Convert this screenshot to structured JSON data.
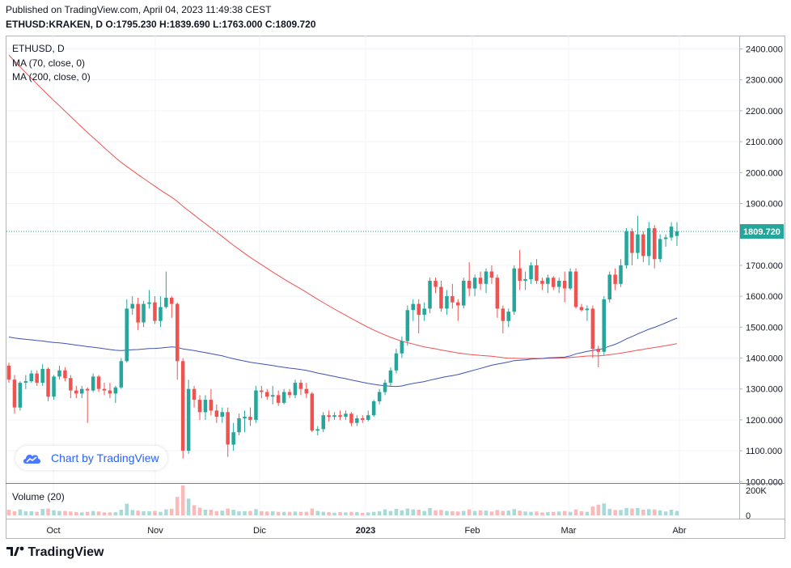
{
  "header": {
    "published": "Published on TradingView.com, April 04, 2023 11:49:38 CEST",
    "symbol": "ETHUSD:KRAKEN, D",
    "ohlc": "O:1795.230 H:1839.690 L:1763.000 C:1809.720"
  },
  "legend": {
    "title": "ETHUSD, D",
    "ma70": "MA (70, close, 0)",
    "ma200": "MA (200, close, 0)",
    "volume": "Volume (20)"
  },
  "watermark": {
    "text": "Chart by TradingView"
  },
  "footer": {
    "brand": "TradingView"
  },
  "chart_data": {
    "type": "candlestick",
    "price_axis": {
      "min": 1000,
      "max": 2400,
      "ticks": [
        "1000.000",
        "1100.000",
        "1200.000",
        "1300.000",
        "1400.000",
        "1500.000",
        "1600.000",
        "1700.000",
        "1800.000",
        "1900.000",
        "2000.000",
        "2100.000",
        "2200.000",
        "2300.000",
        "2400.000"
      ]
    },
    "volume_axis": {
      "ticks": [
        "0",
        "200K"
      ]
    },
    "time_axis": {
      "labels": [
        "Oct",
        "Nov",
        "Dic",
        "2023",
        "Feb",
        "Mar",
        "Abr"
      ]
    },
    "last_price": "1809.720",
    "colors": {
      "up": "#26a69a",
      "down": "#ef5350",
      "ma70": "#3f51b5",
      "ma200": "#ef5350",
      "last": "#26a69a"
    },
    "series": [
      {
        "name": "ETHUSD",
        "values": [
          [
            1375,
            1385,
            1320,
            1330
          ],
          [
            1330,
            1345,
            1220,
            1240
          ],
          [
            1240,
            1325,
            1230,
            1320
          ],
          [
            1320,
            1345,
            1300,
            1325
          ],
          [
            1325,
            1360,
            1320,
            1350
          ],
          [
            1350,
            1360,
            1310,
            1320
          ],
          [
            1320,
            1380,
            1310,
            1365
          ],
          [
            1365,
            1370,
            1260,
            1275
          ],
          [
            1275,
            1345,
            1265,
            1340
          ],
          [
            1340,
            1375,
            1330,
            1360
          ],
          [
            1360,
            1370,
            1325,
            1335
          ],
          [
            1335,
            1345,
            1270,
            1295
          ],
          [
            1295,
            1310,
            1270,
            1285
          ],
          [
            1285,
            1310,
            1270,
            1300
          ],
          [
            1300,
            1305,
            1190,
            1295
          ],
          [
            1295,
            1350,
            1290,
            1340
          ],
          [
            1340,
            1345,
            1290,
            1300
          ],
          [
            1300,
            1320,
            1280,
            1295
          ],
          [
            1295,
            1320,
            1270,
            1285
          ],
          [
            1285,
            1310,
            1255,
            1305
          ],
          [
            1305,
            1400,
            1300,
            1390
          ],
          [
            1390,
            1590,
            1385,
            1560
          ],
          [
            1560,
            1600,
            1540,
            1575
          ],
          [
            1575,
            1595,
            1490,
            1515
          ],
          [
            1515,
            1585,
            1500,
            1575
          ],
          [
            1575,
            1620,
            1560,
            1580
          ],
          [
            1580,
            1600,
            1510,
            1520
          ],
          [
            1520,
            1600,
            1500,
            1565
          ],
          [
            1565,
            1680,
            1560,
            1595
          ],
          [
            1595,
            1600,
            1530,
            1575
          ],
          [
            1575,
            1580,
            1330,
            1390
          ],
          [
            1390,
            1400,
            1075,
            1100
          ],
          [
            1100,
            1330,
            1090,
            1300
          ],
          [
            1300,
            1310,
            1240,
            1265
          ],
          [
            1265,
            1280,
            1200,
            1225
          ],
          [
            1225,
            1280,
            1200,
            1265
          ],
          [
            1265,
            1300,
            1215,
            1230
          ],
          [
            1230,
            1250,
            1190,
            1210
          ],
          [
            1210,
            1240,
            1190,
            1225
          ],
          [
            1225,
            1240,
            1080,
            1120
          ],
          [
            1120,
            1190,
            1100,
            1160
          ],
          [
            1160,
            1220,
            1150,
            1205
          ],
          [
            1205,
            1230,
            1160,
            1210
          ],
          [
            1210,
            1240,
            1180,
            1200
          ],
          [
            1200,
            1310,
            1190,
            1295
          ],
          [
            1295,
            1310,
            1270,
            1290
          ],
          [
            1290,
            1300,
            1265,
            1275
          ],
          [
            1275,
            1310,
            1250,
            1280
          ],
          [
            1280,
            1295,
            1245,
            1255
          ],
          [
            1255,
            1300,
            1250,
            1290
          ],
          [
            1290,
            1300,
            1270,
            1280
          ],
          [
            1280,
            1330,
            1270,
            1320
          ],
          [
            1320,
            1330,
            1280,
            1300
          ],
          [
            1300,
            1320,
            1270,
            1285
          ],
          [
            1285,
            1290,
            1160,
            1165
          ],
          [
            1165,
            1180,
            1150,
            1170
          ],
          [
            1170,
            1225,
            1160,
            1215
          ],
          [
            1215,
            1230,
            1195,
            1210
          ],
          [
            1210,
            1225,
            1200,
            1215
          ],
          [
            1215,
            1230,
            1200,
            1210
          ],
          [
            1210,
            1230,
            1200,
            1220
          ],
          [
            1220,
            1225,
            1180,
            1190
          ],
          [
            1190,
            1215,
            1180,
            1205
          ],
          [
            1205,
            1215,
            1190,
            1200
          ],
          [
            1200,
            1230,
            1195,
            1215
          ],
          [
            1215,
            1265,
            1210,
            1260
          ],
          [
            1260,
            1300,
            1250,
            1290
          ],
          [
            1290,
            1330,
            1280,
            1320
          ],
          [
            1320,
            1370,
            1310,
            1360
          ],
          [
            1360,
            1430,
            1350,
            1415
          ],
          [
            1415,
            1470,
            1400,
            1455
          ],
          [
            1455,
            1570,
            1440,
            1555
          ],
          [
            1555,
            1590,
            1520,
            1575
          ],
          [
            1575,
            1590,
            1480,
            1540
          ],
          [
            1540,
            1580,
            1520,
            1560
          ],
          [
            1560,
            1660,
            1545,
            1650
          ],
          [
            1650,
            1660,
            1610,
            1630
          ],
          [
            1630,
            1650,
            1550,
            1560
          ],
          [
            1560,
            1620,
            1540,
            1600
          ],
          [
            1600,
            1640,
            1560,
            1580
          ],
          [
            1580,
            1590,
            1520,
            1570
          ],
          [
            1570,
            1660,
            1560,
            1650
          ],
          [
            1650,
            1710,
            1600,
            1625
          ],
          [
            1625,
            1670,
            1600,
            1660
          ],
          [
            1660,
            1680,
            1620,
            1640
          ],
          [
            1640,
            1690,
            1610,
            1680
          ],
          [
            1680,
            1700,
            1640,
            1660
          ],
          [
            1660,
            1670,
            1530,
            1560
          ],
          [
            1560,
            1570,
            1480,
            1520
          ],
          [
            1520,
            1560,
            1500,
            1550
          ],
          [
            1550,
            1700,
            1540,
            1690
          ],
          [
            1690,
            1750,
            1620,
            1650
          ],
          [
            1650,
            1680,
            1620,
            1655
          ],
          [
            1655,
            1710,
            1640,
            1700
          ],
          [
            1700,
            1720,
            1640,
            1650
          ],
          [
            1650,
            1660,
            1620,
            1640
          ],
          [
            1640,
            1670,
            1610,
            1660
          ],
          [
            1660,
            1665,
            1620,
            1630
          ],
          [
            1630,
            1660,
            1610,
            1650
          ],
          [
            1650,
            1680,
            1580,
            1625
          ],
          [
            1625,
            1690,
            1620,
            1680
          ],
          [
            1680,
            1690,
            1560,
            1565
          ],
          [
            1565,
            1575,
            1550,
            1555
          ],
          [
            1555,
            1570,
            1520,
            1560
          ],
          [
            1560,
            1570,
            1400,
            1430
          ],
          [
            1430,
            1440,
            1370,
            1420
          ],
          [
            1420,
            1600,
            1410,
            1590
          ],
          [
            1590,
            1680,
            1580,
            1670
          ],
          [
            1670,
            1690,
            1620,
            1640
          ],
          [
            1640,
            1720,
            1630,
            1700
          ],
          [
            1700,
            1820,
            1690,
            1810
          ],
          [
            1810,
            1820,
            1700,
            1740
          ],
          [
            1740,
            1860,
            1720,
            1800
          ],
          [
            1800,
            1810,
            1710,
            1730
          ],
          [
            1730,
            1840,
            1700,
            1820
          ],
          [
            1820,
            1830,
            1690,
            1720
          ],
          [
            1720,
            1800,
            1710,
            1785
          ],
          [
            1785,
            1800,
            1760,
            1790
          ],
          [
            1790,
            1840,
            1780,
            1825
          ],
          [
            1795,
            1839.69,
            1763,
            1809.72
          ]
        ]
      }
    ],
    "volume_bars": [
      0.19,
      0.14,
      0.2,
      0.14,
      0.14,
      0.12,
      0.22,
      0.23,
      0.17,
      0.15,
      0.15,
      0.13,
      0.11,
      0.1,
      0.12,
      0.15,
      0.13,
      0.1,
      0.1,
      0.11,
      0.19,
      0.39,
      0.18,
      0.16,
      0.14,
      0.14,
      0.15,
      0.12,
      0.2,
      0.22,
      0.62,
      1.0,
      0.56,
      0.34,
      0.26,
      0.19,
      0.19,
      0.14,
      0.16,
      0.23,
      0.19,
      0.14,
      0.14,
      0.15,
      0.21,
      0.14,
      0.13,
      0.14,
      0.12,
      0.12,
      0.12,
      0.13,
      0.12,
      0.12,
      0.23,
      0.15,
      0.12,
      0.11,
      0.09,
      0.11,
      0.1,
      0.12,
      0.11,
      0.09,
      0.1,
      0.12,
      0.14,
      0.2,
      0.15,
      0.22,
      0.17,
      0.23,
      0.2,
      0.19,
      0.15,
      0.25,
      0.17,
      0.18,
      0.15,
      0.14,
      0.13,
      0.15,
      0.2,
      0.15,
      0.17,
      0.16,
      0.13,
      0.18,
      0.15,
      0.16,
      0.21,
      0.16,
      0.13,
      0.12,
      0.13,
      0.1,
      0.11,
      0.12,
      0.13,
      0.15,
      0.12,
      0.2,
      0.14,
      0.12,
      0.3,
      0.36,
      0.4,
      0.22,
      0.18,
      0.18,
      0.25,
      0.23,
      0.25,
      0.19,
      0.21,
      0.2,
      0.17,
      0.13,
      0.19,
      0.15
    ]
  }
}
